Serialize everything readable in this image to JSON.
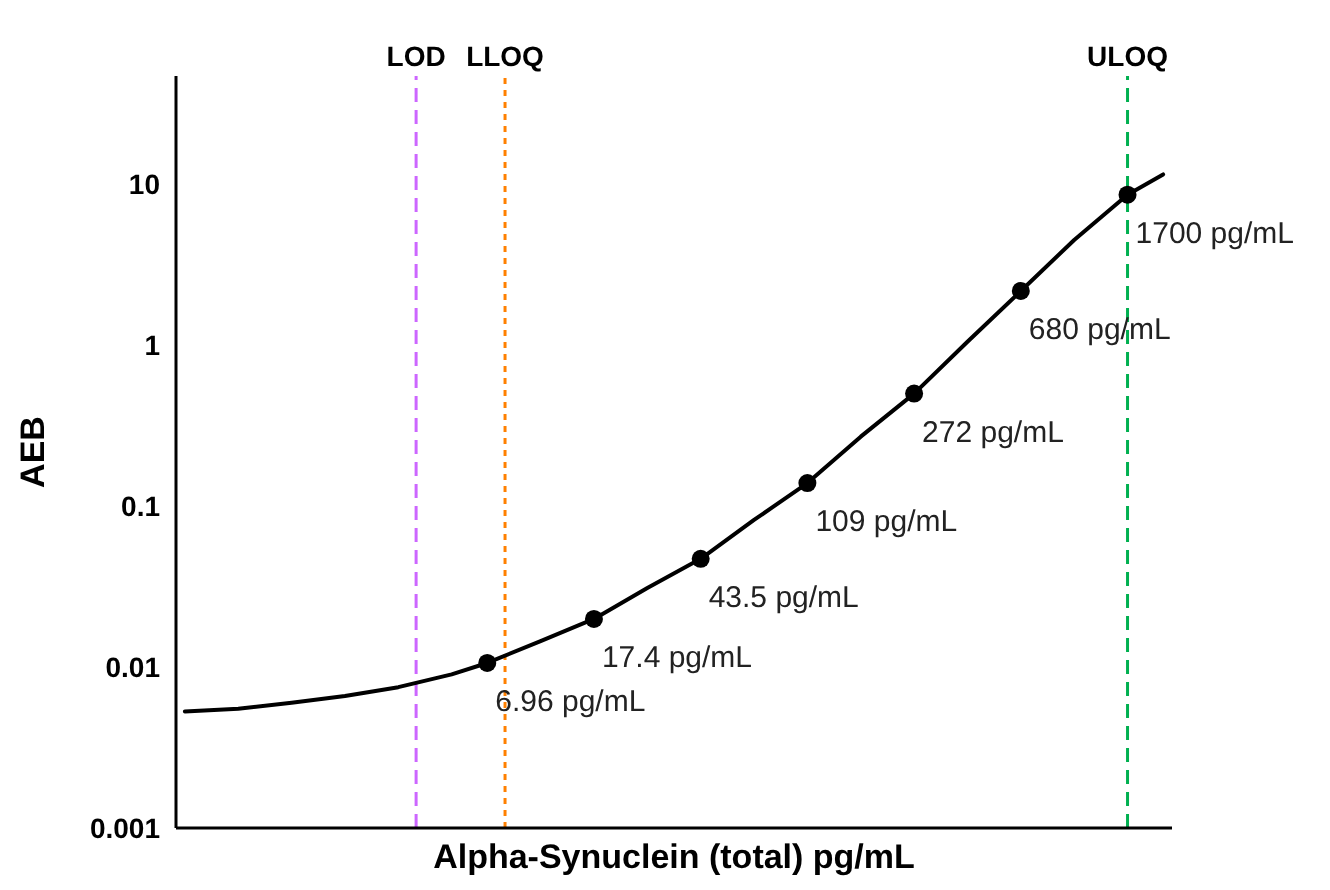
{
  "chart_data": {
    "type": "line",
    "xlabel": "Alpha-Synuclein (total) pg/mL",
    "ylabel": "AEB",
    "log": "y",
    "ylim": [
      0.001,
      47
    ],
    "yticks": [
      0.001,
      0.01,
      0.1,
      1,
      10
    ],
    "tick_labels": "y",
    "grid": false,
    "categories": [
      null,
      null,
      null,
      null,
      null,
      null,
      null,
      null,
      null,
      null,
      null,
      null,
      null,
      null,
      null,
      null,
      null,
      null,
      null,
      null,
      null,
      null,
      null,
      null,
      null,
      null,
      null,
      null,
      null,
      null,
      null,
      null,
      null,
      null,
      null,
      null,
      null,
      null,
      null,
      null,
      null,
      null,
      null,
      null,
      null,
      null,
      null,
      null,
      null,
      null,
      null,
      null,
      null,
      null,
      null,
      null
    ],
    "series": [
      {
        "color": "#000000",
        "marker": "none",
        "line_style": "solid",
        "values": [
          0.0053,
          null,
          null,
          0.0055,
          null,
          null,
          0.006,
          null,
          null,
          0.0066,
          null,
          null,
          0.0075,
          null,
          null,
          0.009,
          null,
          0.0106,
          null,
          null,
          0.0145,
          null,
          null,
          0.0199,
          null,
          null,
          0.031,
          null,
          null,
          0.047,
          null,
          null,
          0.082,
          null,
          null,
          0.139,
          null,
          null,
          0.27,
          null,
          null,
          0.5,
          null,
          null,
          1.05,
          null,
          null,
          2.17,
          null,
          null,
          4.5,
          null,
          null,
          8.6,
          null,
          11.5
        ]
      },
      {
        "type": "scatter",
        "color": "#000000",
        "marker": "circle",
        "values": [
          null,
          null,
          null,
          null,
          null,
          null,
          null,
          null,
          null,
          null,
          null,
          null,
          null,
          null,
          null,
          null,
          null,
          0.0106,
          null,
          null,
          null,
          null,
          null,
          0.0199,
          null,
          null,
          null,
          null,
          null,
          0.047,
          null,
          null,
          null,
          null,
          null,
          0.139,
          null,
          null,
          null,
          null,
          null,
          0.5,
          null,
          null,
          null,
          null,
          null,
          2.17,
          null,
          null,
          null,
          null,
          null,
          8.6,
          null,
          null
        ]
      }
    ],
    "annotations": [
      "6.96 pg/mL",
      "17.4 pg/mL",
      "43.5 pg/mL",
      "109 pg/mL",
      "272 pg/mL",
      "680 pg/mL",
      "1700 pg/mL"
    ],
    "ref_lines": [
      {
        "axis": "x",
        "label": "LOD",
        "color": "#cc66ff",
        "line_style": "dashed"
      },
      {
        "axis": "x",
        "label": "LLOQ",
        "color": "#ff8000",
        "line_style": "dotted"
      },
      {
        "axis": "x",
        "label": "ULOQ",
        "color": "#00b050",
        "line_style": "dashed"
      }
    ]
  }
}
